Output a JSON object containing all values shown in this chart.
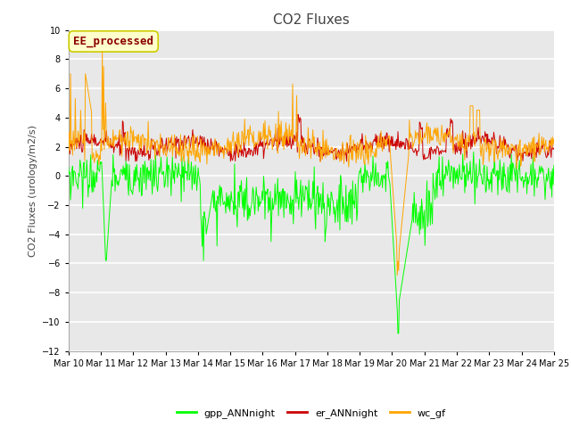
{
  "title": "CO2 Fluxes",
  "ylabel": "CO2 Fluxes (urology/m2/s)",
  "ylim": [
    -12,
    10
  ],
  "yticks": [
    -12,
    -10,
    -8,
    -6,
    -4,
    -2,
    0,
    2,
    4,
    6,
    8,
    10
  ],
  "n_days": 15,
  "n_per_day": 48,
  "xtick_labels": [
    "Mar 10",
    "Mar 11",
    "Mar 12",
    "Mar 13",
    "Mar 14",
    "Mar 15",
    "Mar 16",
    "Mar 17",
    "Mar 18",
    "Mar 19",
    "Mar 20",
    "Mar 21",
    "Mar 22",
    "Mar 23",
    "Mar 24",
    "Mar 25"
  ],
  "line_colors": {
    "gpp": "#00FF00",
    "er": "#CC0000",
    "wc": "#FFA500"
  },
  "legend_labels": [
    "gpp_ANNnight",
    "er_ANNnight",
    "wc_gf"
  ],
  "annotation_text": "EE_processed",
  "annotation_box_color": "#FFFFCC",
  "annotation_text_color": "#8B0000",
  "annotation_edge_color": "#CCCC00",
  "fig_bg_color": "#FFFFFF",
  "plot_bg_color": "#E8E8E8",
  "grid_color": "#FFFFFF",
  "title_fontsize": 11,
  "label_fontsize": 8,
  "tick_fontsize": 7,
  "legend_fontsize": 8,
  "annot_fontsize": 9
}
